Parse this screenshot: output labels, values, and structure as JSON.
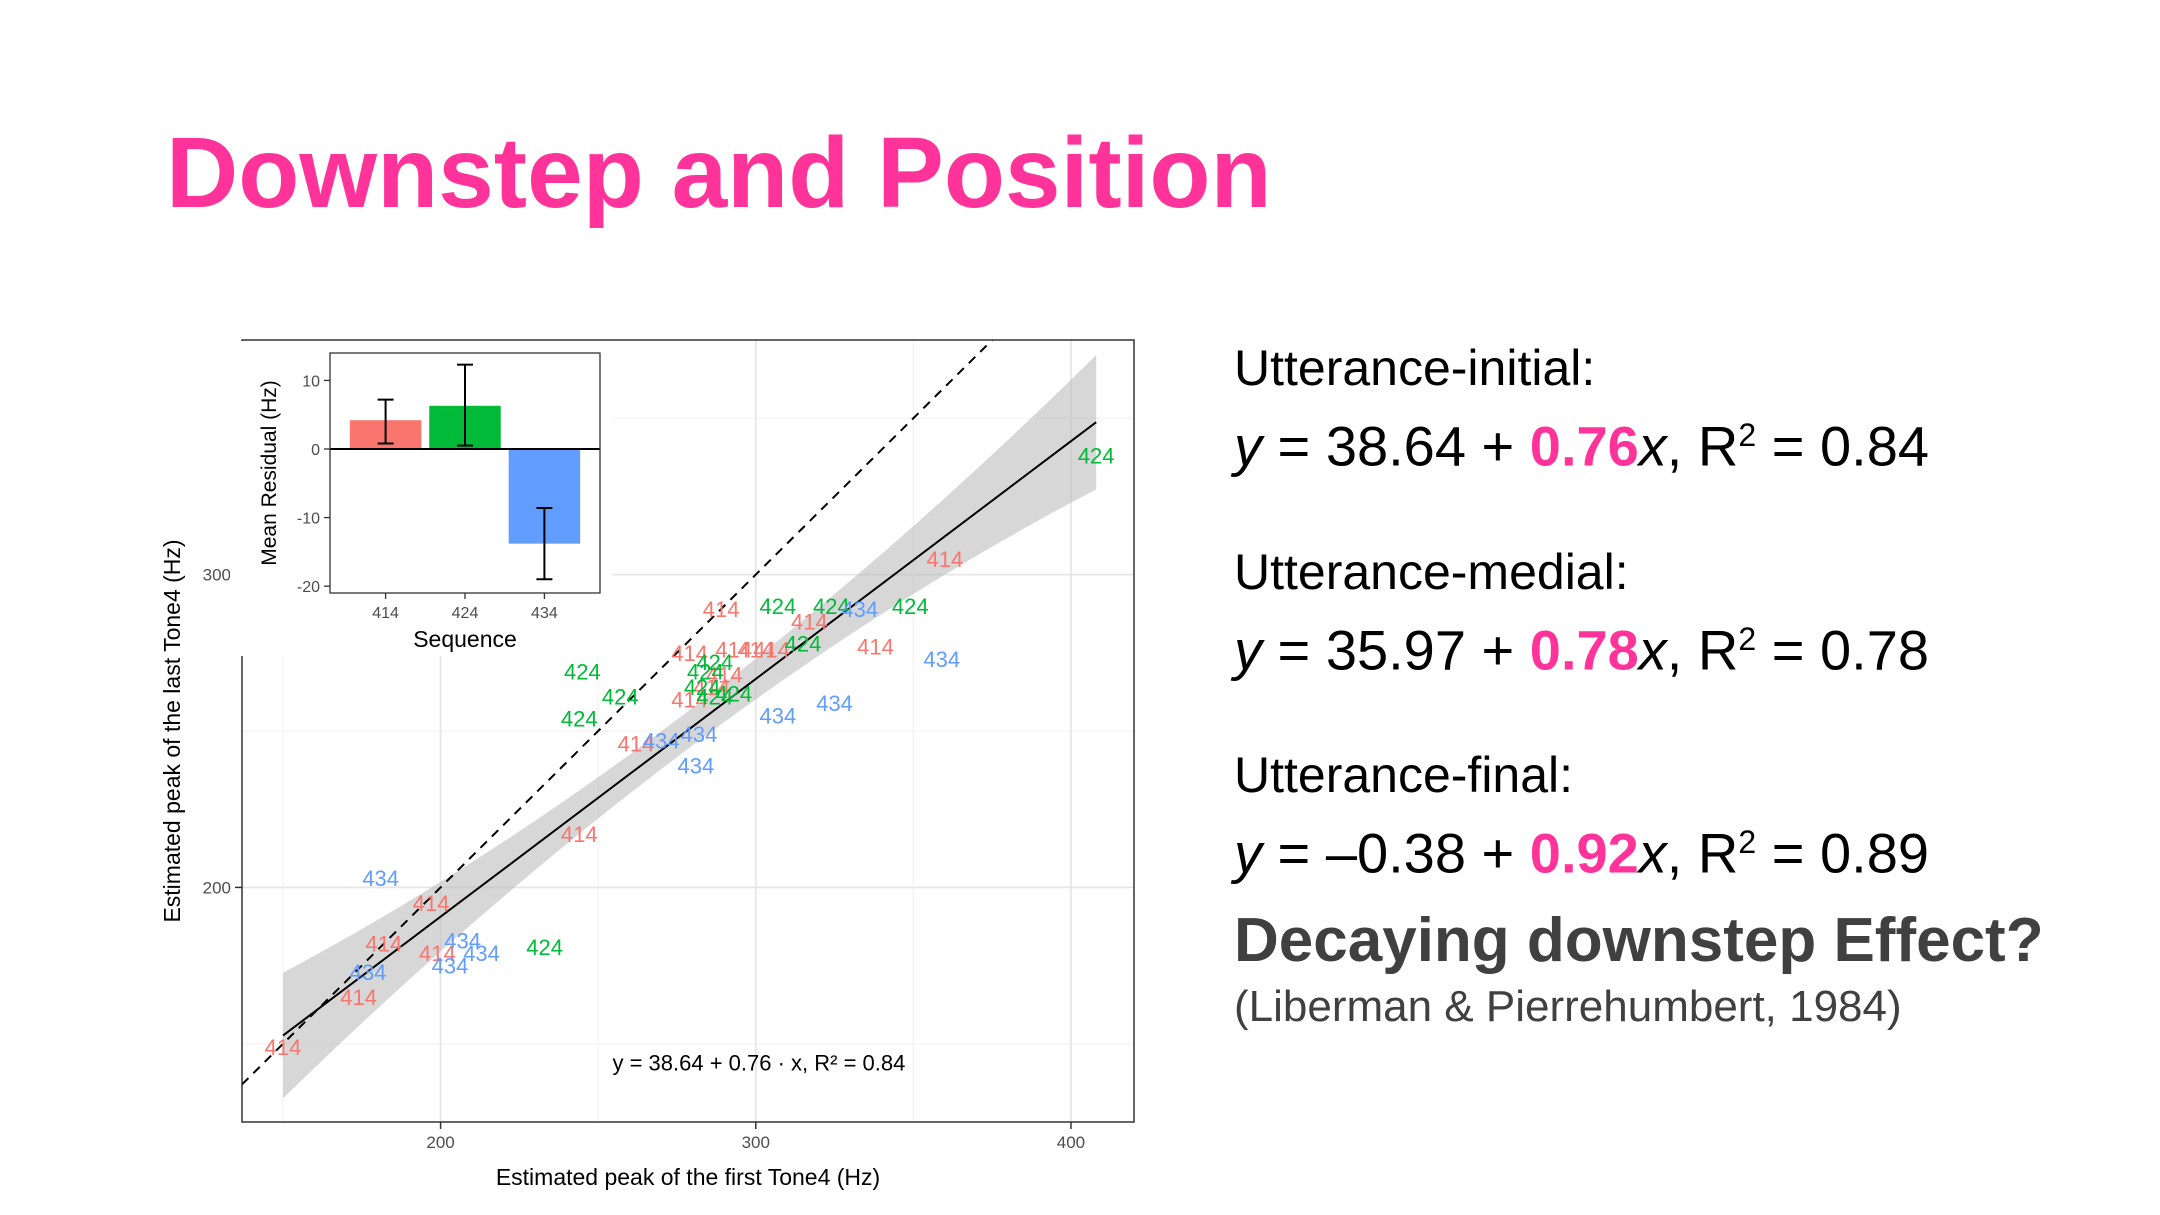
{
  "slide": {
    "title": "Downstep and Position",
    "equations": [
      {
        "label": "Utterance-initial:",
        "intercept": "38.64",
        "slope": "0.76",
        "r2": "0.84"
      },
      {
        "label": "Utterance-medial:",
        "intercept": "35.97",
        "slope": "0.78",
        "r2": "0.78"
      },
      {
        "label": "Utterance-final:",
        "intercept": "–0.38",
        "slope": "0.92",
        "r2": "0.89"
      }
    ],
    "question": "Decaying downstep Effect?",
    "citation": "(Liberman & Pierrehumbert, 1984)"
  },
  "colors": {
    "accent": "#ff3399",
    "seq414": "#f8766d",
    "seq424": "#00ba38",
    "seq434": "#619cff"
  },
  "chart_data": [
    {
      "type": "scatter",
      "xlabel": "Estimated peak of the first Tone4 (Hz)",
      "ylabel": "Estimated peak of the last Tone4 (Hz)",
      "xlim": [
        137,
        420
      ],
      "ylim": [
        125,
        375
      ],
      "xticks": [
        200,
        300,
        400
      ],
      "yticks": [
        200,
        300
      ],
      "grid": true,
      "annotation": "y = 38.64 + 0.76 · x, R² = 0.84",
      "fit": {
        "intercept": 38.64,
        "slope": 0.76,
        "x_range": [
          150,
          408
        ],
        "ci_band": "grey"
      },
      "reference_line": {
        "type": "identity",
        "style": "dashed"
      },
      "points": [
        {
          "x": 150,
          "y": 149,
          "label": "414"
        },
        {
          "x": 174,
          "y": 165,
          "label": "414"
        },
        {
          "x": 182,
          "y": 182,
          "label": "414"
        },
        {
          "x": 197,
          "y": 195,
          "label": "414"
        },
        {
          "x": 199,
          "y": 179,
          "label": "414"
        },
        {
          "x": 244,
          "y": 217,
          "label": "414"
        },
        {
          "x": 262,
          "y": 246,
          "label": "414"
        },
        {
          "x": 279,
          "y": 260,
          "label": "414"
        },
        {
          "x": 279,
          "y": 275,
          "label": "414"
        },
        {
          "x": 286,
          "y": 264,
          "label": "414"
        },
        {
          "x": 290,
          "y": 268,
          "label": "414"
        },
        {
          "x": 293,
          "y": 276,
          "label": "414"
        },
        {
          "x": 300,
          "y": 276,
          "label": "414"
        },
        {
          "x": 305,
          "y": 276,
          "label": "414"
        },
        {
          "x": 289,
          "y": 289,
          "label": "414"
        },
        {
          "x": 317,
          "y": 285,
          "label": "414"
        },
        {
          "x": 338,
          "y": 277,
          "label": "414"
        },
        {
          "x": 360,
          "y": 305,
          "label": "414"
        },
        {
          "x": 245,
          "y": 269,
          "label": "424"
        },
        {
          "x": 244,
          "y": 254,
          "label": "424"
        },
        {
          "x": 257,
          "y": 261,
          "label": "424"
        },
        {
          "x": 233,
          "y": 181,
          "label": "424"
        },
        {
          "x": 283,
          "y": 264,
          "label": "424"
        },
        {
          "x": 287,
          "y": 261,
          "label": "424"
        },
        {
          "x": 284,
          "y": 269,
          "label": "424"
        },
        {
          "x": 287,
          "y": 272,
          "label": "424"
        },
        {
          "x": 293,
          "y": 262,
          "label": "424"
        },
        {
          "x": 307,
          "y": 290,
          "label": "424"
        },
        {
          "x": 315,
          "y": 278,
          "label": "424"
        },
        {
          "x": 324,
          "y": 290,
          "label": "424"
        },
        {
          "x": 349,
          "y": 290,
          "label": "424"
        },
        {
          "x": 408,
          "y": 338,
          "label": "424"
        },
        {
          "x": 181,
          "y": 203,
          "label": "434"
        },
        {
          "x": 177,
          "y": 173,
          "label": "434"
        },
        {
          "x": 203,
          "y": 175,
          "label": "434"
        },
        {
          "x": 207,
          "y": 183,
          "label": "434"
        },
        {
          "x": 213,
          "y": 179,
          "label": "434"
        },
        {
          "x": 270,
          "y": 247,
          "label": "434"
        },
        {
          "x": 281,
          "y": 239,
          "label": "434"
        },
        {
          "x": 282,
          "y": 249,
          "label": "434"
        },
        {
          "x": 307,
          "y": 255,
          "label": "434"
        },
        {
          "x": 325,
          "y": 259,
          "label": "434"
        },
        {
          "x": 333,
          "y": 289,
          "label": "434"
        },
        {
          "x": 359,
          "y": 273,
          "label": "434"
        }
      ]
    },
    {
      "type": "bar",
      "categories": [
        "414",
        "424",
        "434"
      ],
      "values": [
        4.2,
        6.3,
        -13.8
      ],
      "error_low": [
        0.8,
        0.5,
        -19.0
      ],
      "error_high": [
        7.2,
        12.3,
        -8.6
      ],
      "xlabel": "Sequence",
      "ylabel": "Mean Residual (Hz)",
      "ylim": [
        -21,
        14
      ],
      "yticks": [
        -20,
        -10,
        0,
        10
      ],
      "grid": false
    }
  ]
}
